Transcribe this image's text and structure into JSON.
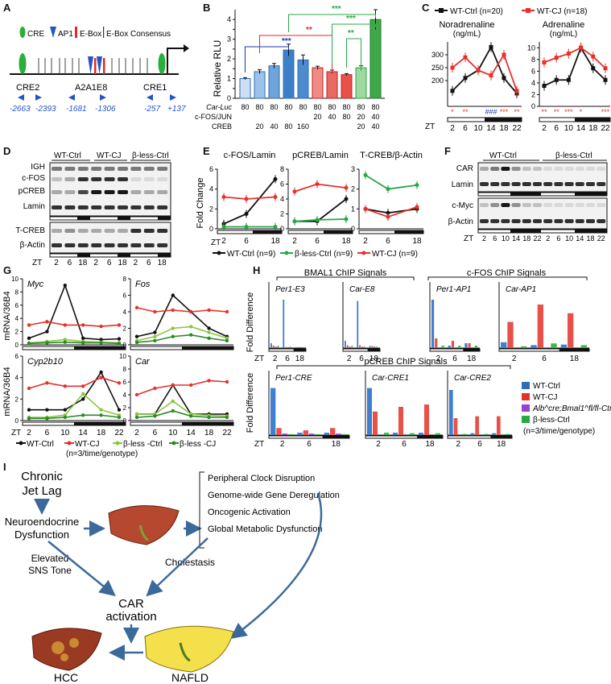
{
  "panels": {
    "A": {
      "letter": "A",
      "legend": {
        "cre": "CRE",
        "ap1": "AP1",
        "ebox": "E-Box",
        "ebox_consensus": "E-Box Consensus"
      },
      "labels": {
        "cre2": "CRE2",
        "a2a1e8": "A2A1E8",
        "cre1": "CRE1"
      },
      "positions": [
        "-2663",
        "-2393",
        "-1681",
        "-1306",
        "-257",
        "+137"
      ]
    },
    "B": {
      "letter": "B",
      "ylabel": "Relative RLU",
      "row_labels": {
        "car_luc": "Car-Luc",
        "cfos_jun": "c-FOS/JUN",
        "creb": "CREB"
      },
      "car_luc": [
        "80",
        "80",
        "80",
        "80",
        "80",
        "80",
        "80",
        "80",
        "80",
        "80"
      ],
      "cfos_jun": [
        "",
        "",
        "",
        "",
        "",
        "20",
        "40",
        "80",
        "20",
        "40"
      ],
      "creb": [
        "",
        "20",
        "40",
        "80",
        "160",
        "",
        "",
        "",
        "20",
        "40"
      ],
      "sig": {
        "blue": "***",
        "red": "**",
        "green1": "**",
        "green2": "***",
        "green3": "***"
      }
    },
    "C": {
      "letter": "C",
      "legend": {
        "wt": "WT-Ctrl (n=20)",
        "cj": "WT-CJ (n=18)"
      },
      "titles": {
        "nor": "Noradrenaline",
        "nor_unit": "(ng/mL)",
        "adr": "Adrenaline",
        "adr_unit": "(ng/mL)"
      },
      "zt_label": "ZT",
      "zt": [
        "2",
        "6",
        "10",
        "14",
        "18",
        "22"
      ],
      "sig_nor": [
        "*",
        "**",
        "",
        "###",
        "***",
        "**"
      ],
      "sig_adr": [
        "**",
        "**",
        "***",
        "*",
        "",
        "***"
      ]
    },
    "D": {
      "letter": "D",
      "groups": [
        "WT-Ctrl",
        "WT-CJ",
        "β-less-Ctrl"
      ],
      "rows": [
        "IGH",
        "c-FOS",
        "pCREB",
        "Lamin",
        "T-CREB",
        "β-Actin"
      ],
      "zt_label": "ZT",
      "zt": [
        "2",
        "6",
        "18",
        "2",
        "6",
        "18",
        "2",
        "6",
        "18"
      ]
    },
    "E": {
      "letter": "E",
      "ylabel": "Fold Change",
      "titles": [
        "c-FOS/Lamin",
        "pCREB/Lamin",
        "T-CREB/β-Actin"
      ],
      "zt_label": "ZT",
      "zt": [
        "2",
        "6",
        "18"
      ],
      "legend": {
        "wt": "WT-Ctrl (n=9)",
        "bless": "β-less-Ctrl (n=9)",
        "cj": "WT-CJ (n=9)"
      }
    },
    "F": {
      "letter": "F",
      "groups": [
        "WT-Ctrl",
        "β-less-Ctrl"
      ],
      "rows": [
        "CAR",
        "Lamin",
        "c-Myc",
        "β-Actin"
      ],
      "zt_label": "ZT",
      "zt": [
        "2",
        "6",
        "10",
        "14",
        "18",
        "22",
        "2",
        "6",
        "10",
        "14",
        "18",
        "22"
      ]
    },
    "G": {
      "letter": "G",
      "ylabel": "mRNA/36B4",
      "genes": [
        "Myc",
        "Fos",
        "Cyp2b10",
        "Car"
      ],
      "zt_label": "ZT",
      "zt": [
        "2",
        "6",
        "10",
        "14",
        "18",
        "22"
      ],
      "legend": {
        "wt": "WT-Ctrl",
        "cj": "WT-CJ",
        "bless": "β-less -Ctrl",
        "blesscj": "β-less -CJ",
        "n": "(n=3/time/genotype)"
      }
    },
    "H": {
      "letter": "H",
      "ylabel": "Fold Difference",
      "groups": {
        "bmal": "BMAL1 ChIP Signals",
        "cfos": "c-FOS ChIP Signals",
        "pcreb": "pCREB ChIP Signals"
      },
      "sites_top": [
        "Per1-E3",
        "Car-E8",
        "Per1-AP1",
        "Car-AP1"
      ],
      "sites_bottom": [
        "Per1-CRE",
        "Car-CRE1",
        "Car-CRE2"
      ],
      "zt_label": "ZT",
      "zt": [
        "2",
        "6",
        "18"
      ],
      "legend": {
        "wt": "WT-Ctrl",
        "cj": "WT-CJ",
        "alb": "Alb^cre;Bmal1^fl/fl-Ctrl",
        "bless": "β-less-Ctrl",
        "n": "(n=3/time/genotype)"
      }
    },
    "I": {
      "letter": "I",
      "cj": [
        "Chronic",
        "Jet Lag"
      ],
      "neuro": [
        "Neuroendocrine",
        "Dysfunction"
      ],
      "effects": [
        "Peripheral Clock Disruption",
        "Genome-wide Gene Deregulation",
        "Oncogenic Activation",
        "Global Metabolic Dysfunction"
      ],
      "sns": [
        "Elevated",
        "SNS Tone"
      ],
      "chol": "Cholestasis",
      "car": [
        "CAR",
        "activation"
      ],
      "hcc": "HCC",
      "nafld": "NAFLD"
    }
  },
  "colors": {
    "blue": "#2f6db5",
    "red": "#e8302a",
    "green": "#27a844",
    "lightgreen": "#8cc63f",
    "purple": "#9a3fd1",
    "black": "#111111"
  },
  "chart_data": [
    {
      "type": "bar",
      "panel": "B",
      "ylabel": "Relative RLU",
      "ylim": [
        0,
        4.5
      ],
      "values": [
        1.0,
        1.35,
        1.65,
        2.45,
        1.95,
        1.55,
        1.35,
        1.2,
        1.55,
        4.0
      ]
    },
    {
      "type": "line",
      "panel": "C-Noradrenaline",
      "x": [
        2,
        6,
        10,
        14,
        18,
        22
      ],
      "series": [
        {
          "name": "WT-Ctrl (n=20)",
          "values": [
            160,
            210,
            240,
            330,
            210,
            150
          ]
        },
        {
          "name": "WT-CJ (n=18)",
          "values": [
            250,
            290,
            240,
            220,
            300,
            160
          ]
        }
      ]
    },
    {
      "type": "line",
      "panel": "C-Adrenaline",
      "x": [
        2,
        6,
        10,
        14,
        18,
        22
      ],
      "series": [
        {
          "name": "WT-Ctrl (n=20)",
          "values": [
            3.5,
            4.5,
            4.5,
            10,
            6.5,
            4.5
          ]
        },
        {
          "name": "WT-CJ (n=18)",
          "values": [
            7.5,
            8.3,
            9,
            10,
            8.5,
            6.5
          ]
        }
      ]
    },
    {
      "type": "line",
      "panel": "E-c-FOS/Lamin",
      "x": [
        2,
        6,
        18
      ],
      "series": [
        {
          "name": "WT-Ctrl (n=9)",
          "values": [
            0.5,
            1.5,
            5
          ]
        },
        {
          "name": "β-less-Ctrl (n=9)",
          "values": [
            0.2,
            0.2,
            0.2
          ]
        },
        {
          "name": "WT-CJ (n=9)",
          "values": [
            3.2,
            3,
            3.2
          ]
        }
      ]
    },
    {
      "type": "line",
      "panel": "E-pCREB/Lamin",
      "x": [
        2,
        6,
        18
      ],
      "series": [
        {
          "name": "WT-Ctrl (n=9)",
          "values": [
            1,
            1,
            4
          ]
        },
        {
          "name": "β-less-Ctrl (n=9)",
          "values": [
            1,
            1.2,
            1.3
          ]
        },
        {
          "name": "WT-CJ (n=9)",
          "values": [
            5,
            6,
            5.5
          ]
        }
      ]
    },
    {
      "type": "line",
      "panel": "E-T-CREB/β-Actin",
      "x": [
        2,
        6,
        18
      ],
      "series": [
        {
          "name": "WT-Ctrl (n=9)",
          "values": [
            1,
            0.8,
            1
          ]
        },
        {
          "name": "β-less-Ctrl (n=9)",
          "values": [
            2.7,
            2,
            2.2
          ]
        },
        {
          "name": "WT-CJ (n=9)",
          "values": [
            1,
            0.6,
            1.1
          ]
        }
      ]
    }
  ]
}
